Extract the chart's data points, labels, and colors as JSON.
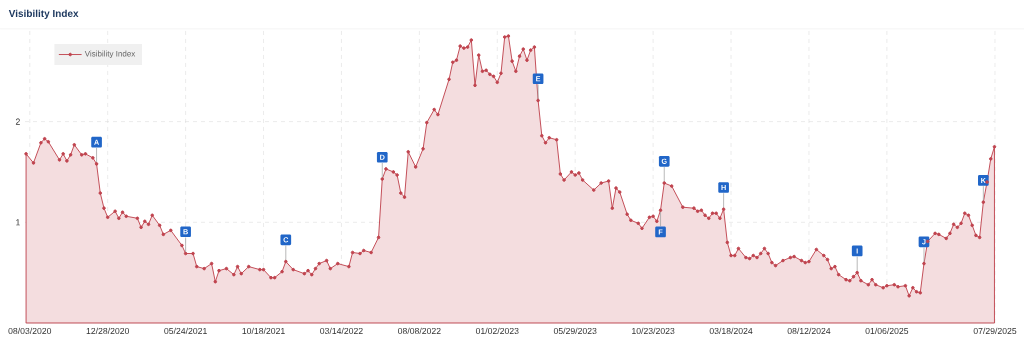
{
  "chart_data": {
    "type": "area",
    "title": "Visibility Index",
    "x": [
      "2020-07-27",
      "2020-08-10",
      "2020-08-24",
      "2020-08-31",
      "2020-09-07",
      "2020-09-28",
      "2020-10-05",
      "2020-10-12",
      "2020-10-19",
      "2020-10-26",
      "2020-11-09",
      "2020-11-16",
      "2020-11-30",
      "2020-12-07",
      "2020-12-14",
      "2020-12-21",
      "2020-12-28",
      "2021-01-11",
      "2021-01-18",
      "2021-01-25",
      "2021-02-01",
      "2021-02-22",
      "2021-03-01",
      "2021-03-08",
      "2021-03-15",
      "2021-03-22",
      "2021-04-05",
      "2021-04-12",
      "2021-04-26",
      "2021-05-17",
      "2021-05-24",
      "2021-06-07",
      "2021-06-14",
      "2021-06-28",
      "2021-07-12",
      "2021-07-19",
      "2021-07-26",
      "2021-08-09",
      "2021-08-23",
      "2021-08-30",
      "2021-09-06",
      "2021-09-20",
      "2021-10-11",
      "2021-10-18",
      "2021-11-01",
      "2021-11-08",
      "2021-11-22",
      "2021-11-29",
      "2021-12-13",
      "2022-01-03",
      "2022-01-10",
      "2022-01-17",
      "2022-01-24",
      "2022-01-31",
      "2022-02-14",
      "2022-02-21",
      "2022-03-07",
      "2022-03-28",
      "2022-04-04",
      "2022-04-18",
      "2022-04-25",
      "2022-05-09",
      "2022-05-23",
      "2022-05-30",
      "2022-06-06",
      "2022-06-20",
      "2022-06-27",
      "2022-07-04",
      "2022-07-11",
      "2022-07-18",
      "2022-08-01",
      "2022-08-15",
      "2022-08-22",
      "2022-09-05",
      "2022-09-12",
      "2022-10-03",
      "2022-10-10",
      "2022-10-17",
      "2022-10-24",
      "2022-10-31",
      "2022-11-07",
      "2022-11-14",
      "2022-11-21",
      "2022-11-28",
      "2022-12-05",
      "2022-12-12",
      "2022-12-19",
      "2022-12-26",
      "2023-01-02",
      "2023-01-09",
      "2023-01-16",
      "2023-01-23",
      "2023-01-30",
      "2023-02-06",
      "2023-02-13",
      "2023-02-20",
      "2023-02-27",
      "2023-03-06",
      "2023-03-13",
      "2023-03-20",
      "2023-03-27",
      "2023-04-03",
      "2023-04-10",
      "2023-04-24",
      "2023-05-01",
      "2023-05-08",
      "2023-05-22",
      "2023-05-29",
      "2023-06-05",
      "2023-06-12",
      "2023-07-03",
      "2023-07-17",
      "2023-07-31",
      "2023-08-07",
      "2023-08-14",
      "2023-08-21",
      "2023-09-04",
      "2023-09-11",
      "2023-09-25",
      "2023-10-02",
      "2023-10-16",
      "2023-10-23",
      "2023-10-30",
      "2023-11-06",
      "2023-11-13",
      "2023-11-27",
      "2023-12-18",
      "2024-01-08",
      "2024-01-15",
      "2024-01-22",
      "2024-01-29",
      "2024-02-05",
      "2024-02-12",
      "2024-02-19",
      "2024-02-26",
      "2024-03-04",
      "2024-03-11",
      "2024-03-18",
      "2024-03-25",
      "2024-04-01",
      "2024-04-15",
      "2024-04-22",
      "2024-04-29",
      "2024-05-06",
      "2024-05-13",
      "2024-05-20",
      "2024-05-27",
      "2024-06-03",
      "2024-06-10",
      "2024-06-24",
      "2024-07-08",
      "2024-07-15",
      "2024-07-29",
      "2024-08-05",
      "2024-08-12",
      "2024-08-26",
      "2024-09-09",
      "2024-09-16",
      "2024-09-23",
      "2024-09-30",
      "2024-10-07",
      "2024-10-21",
      "2024-10-28",
      "2024-11-04",
      "2024-11-11",
      "2024-11-18",
      "2024-12-02",
      "2024-12-09",
      "2024-12-16",
      "2024-12-30",
      "2025-01-06",
      "2025-01-20",
      "2025-01-27",
      "2025-02-10",
      "2025-02-17",
      "2025-02-24",
      "2025-03-03",
      "2025-03-10",
      "2025-03-17",
      "2025-03-24",
      "2025-04-07",
      "2025-04-14",
      "2025-04-28",
      "2025-05-05",
      "2025-05-12",
      "2025-05-19",
      "2025-05-26",
      "2025-06-02",
      "2025-06-09",
      "2025-06-16",
      "2025-06-23",
      "2025-06-30",
      "2025-07-07",
      "2025-07-14",
      "2025-07-21",
      "2025-07-28"
    ],
    "series": [
      {
        "name": "Visibility Index",
        "color": "#c0444f",
        "values": [
          1.68,
          1.59,
          1.79,
          1.83,
          1.8,
          1.62,
          1.68,
          1.61,
          1.67,
          1.77,
          1.67,
          1.68,
          1.64,
          1.58,
          1.29,
          1.14,
          1.05,
          1.11,
          1.04,
          1.1,
          1.06,
          1.04,
          0.95,
          1.01,
          0.98,
          1.07,
          0.97,
          0.88,
          0.92,
          0.77,
          0.69,
          0.69,
          0.56,
          0.54,
          0.59,
          0.41,
          0.52,
          0.54,
          0.48,
          0.56,
          0.49,
          0.56,
          0.53,
          0.53,
          0.45,
          0.45,
          0.51,
          0.61,
          0.53,
          0.49,
          0.52,
          0.48,
          0.54,
          0.59,
          0.62,
          0.54,
          0.59,
          0.56,
          0.7,
          0.69,
          0.72,
          0.7,
          0.85,
          1.43,
          1.53,
          1.5,
          1.47,
          1.29,
          1.25,
          1.7,
          1.55,
          1.73,
          1.99,
          2.12,
          2.07,
          2.42,
          2.59,
          2.61,
          2.75,
          2.73,
          2.74,
          2.81,
          2.36,
          2.66,
          2.5,
          2.51,
          2.47,
          2.45,
          2.39,
          2.48,
          2.84,
          2.85,
          2.6,
          2.5,
          2.65,
          2.72,
          2.61,
          2.71,
          2.74,
          2.21,
          1.86,
          1.79,
          1.84,
          1.82,
          1.48,
          1.42,
          1.5,
          1.47,
          1.49,
          1.42,
          1.32,
          1.39,
          1.41,
          1.14,
          1.34,
          1.3,
          1.08,
          1.02,
          0.99,
          0.94,
          1.05,
          1.06,
          1.01,
          1.12,
          1.39,
          1.36,
          1.15,
          1.14,
          1.11,
          1.12,
          1.07,
          1.04,
          1.09,
          1.09,
          1.04,
          1.13,
          0.8,
          0.67,
          0.67,
          0.74,
          0.65,
          0.64,
          0.67,
          0.65,
          0.69,
          0.74,
          0.69,
          0.6,
          0.57,
          0.62,
          0.65,
          0.66,
          0.62,
          0.6,
          0.61,
          0.73,
          0.67,
          0.63,
          0.54,
          0.56,
          0.48,
          0.43,
          0.42,
          0.46,
          0.5,
          0.42,
          0.38,
          0.43,
          0.38,
          0.35,
          0.37,
          0.38,
          0.36,
          0.37,
          0.27,
          0.35,
          0.31,
          0.3,
          0.59,
          0.81,
          0.89,
          0.88,
          0.84,
          0.89,
          0.98,
          0.95,
          0.99,
          1.09,
          1.07,
          0.97,
          0.87,
          0.85,
          1.2,
          1.4,
          1.63,
          1.75
        ]
      }
    ],
    "xlim": [
      "2020-07-25",
      "2025-07-29"
    ],
    "xticks": [
      {
        "value": "2020-08-03",
        "label": "08/03/2020"
      },
      {
        "value": "2020-12-28",
        "label": "12/28/2020"
      },
      {
        "value": "2021-05-24",
        "label": "05/24/2021"
      },
      {
        "value": "2021-10-18",
        "label": "10/18/2021"
      },
      {
        "value": "2022-03-14",
        "label": "03/14/2022"
      },
      {
        "value": "2022-08-08",
        "label": "08/08/2022"
      },
      {
        "value": "2023-01-02",
        "label": "01/02/2023"
      },
      {
        "value": "2023-05-29",
        "label": "05/29/2023"
      },
      {
        "value": "2023-10-23",
        "label": "10/23/2023"
      },
      {
        "value": "2024-03-18",
        "label": "03/18/2024"
      },
      {
        "value": "2024-08-12",
        "label": "08/12/2024"
      },
      {
        "value": "2025-01-06",
        "label": "01/06/2025"
      },
      {
        "value": "2025-07-29",
        "label": "07/29/2025"
      }
    ],
    "ylim": [
      0,
      2.92
    ],
    "yticks": [
      1,
      2
    ],
    "grid": true,
    "legend": "top left",
    "marker": "circle",
    "line_style": "solid",
    "annotations": [
      {
        "text": "A",
        "x": "2020-12-07",
        "y": 1.58
      },
      {
        "text": "B",
        "x": "2021-05-24",
        "y": 0.69
      },
      {
        "text": "C",
        "x": "2021-11-29",
        "y": 0.61
      },
      {
        "text": "D",
        "x": "2022-05-30",
        "y": 1.43
      },
      {
        "text": "E",
        "x": "2023-03-20",
        "y": 2.21
      },
      {
        "text": "F",
        "x": "2023-11-06",
        "y": 1.12
      },
      {
        "text": "G",
        "x": "2023-11-13",
        "y": 1.39
      },
      {
        "text": "H",
        "x": "2024-03-04",
        "y": 1.13
      },
      {
        "text": "I",
        "x": "2024-11-11",
        "y": 0.5
      },
      {
        "text": "J",
        "x": "2025-03-17",
        "y": 0.59
      },
      {
        "text": "K",
        "x": "2025-07-07",
        "y": 1.2
      }
    ]
  }
}
